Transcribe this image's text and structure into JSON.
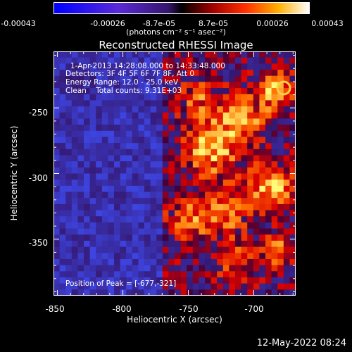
{
  "chart_data": {
    "type": "heatmap",
    "title": "Reconstructed RHESSI Image",
    "xlabel": "Heliocentric X (arcsec)",
    "ylabel": "Heliocentric Y (arcsec)",
    "xlim": [
      -853,
      -668
    ],
    "ylim": [
      -393,
      -207
    ],
    "xticks": [
      -850,
      -800,
      -750,
      -700
    ],
    "yticks": [
      -250,
      -300,
      -350
    ],
    "colorbar": {
      "ticks": [
        "-0.00043",
        "-0.00026",
        "-8.7e-05",
        "8.7e-05",
        "0.00026",
        "0.00043"
      ],
      "units": "(photons cm⁻² s⁻¹ asec⁻²)",
      "range": [
        -0.00043,
        0.00043
      ]
    },
    "annotations": [
      "1-Apr-2013 14:28:08.000 to 14:33:48.000",
      "Detectors: 3F 4F 5F 6F 7F 8F, Att 0",
      "Energy Range: 12.0 - 25.0 keV",
      "Clean    Total counts: 9.31E+03"
    ],
    "peak_label": "Position of Peak = [-677,-321]",
    "peak_position": [
      -677,
      -321
    ],
    "grid": false
  },
  "footer": {
    "date": "12-May-2022 08:24"
  }
}
